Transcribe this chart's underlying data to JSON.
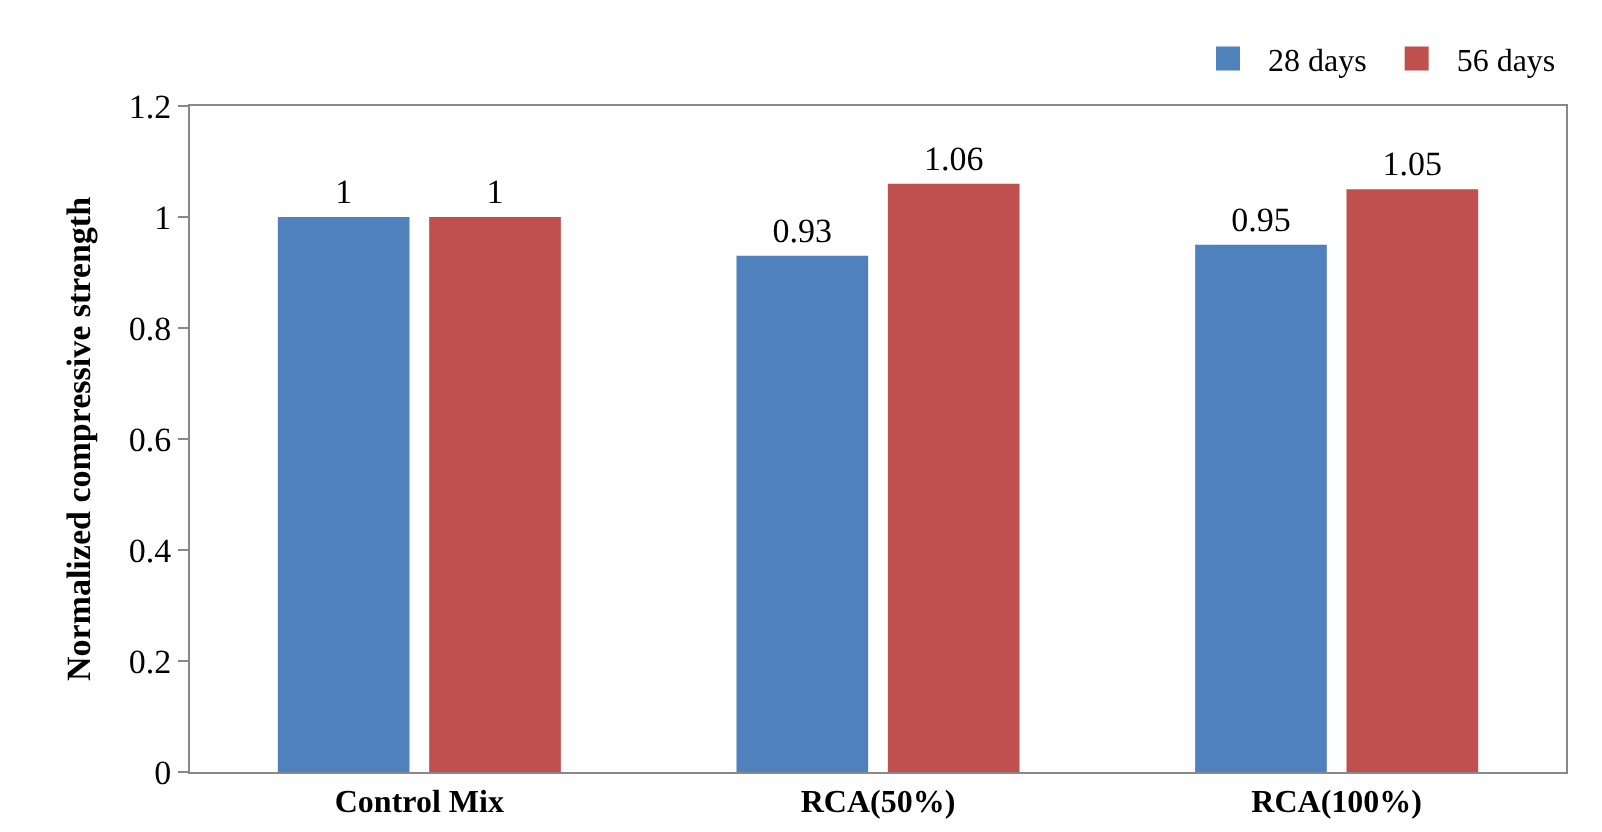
{
  "chart_data": {
    "type": "bar",
    "ylabel": "Normalized compressive strength",
    "categories": [
      "Control Mix",
      "RCA(50%)",
      "RCA(100%)"
    ],
    "series": [
      {
        "name": "28 days",
        "color": "#4f81bd",
        "values": [
          1,
          0.93,
          0.95
        ]
      },
      {
        "name": "56 days",
        "color": "#c0504d",
        "values": [
          1,
          1.06,
          1.05
        ]
      }
    ],
    "ylim": [
      0,
      1.2
    ],
    "yticks": [
      0,
      0.2,
      0.4,
      0.6,
      0.8,
      1,
      1.2
    ],
    "grid": false,
    "legend": "top right",
    "data_labels": true
  }
}
